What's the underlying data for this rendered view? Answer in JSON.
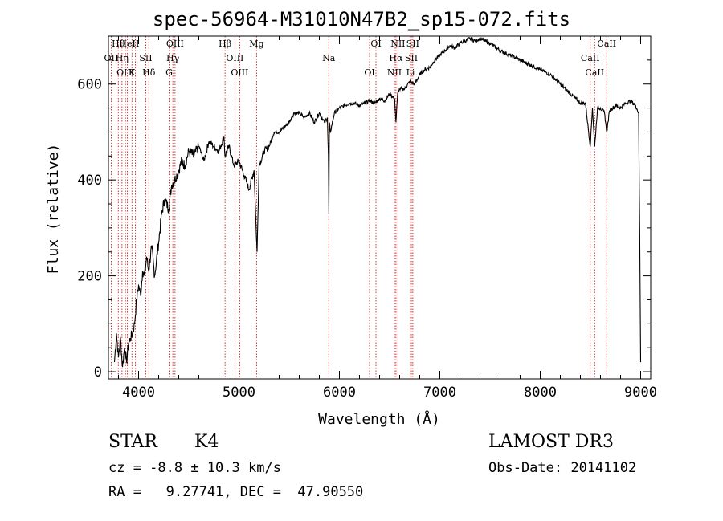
{
  "chart_data": {
    "type": "line",
    "title": "spec-56964-M31010N47B2_sp15-072.fits",
    "xlabel": "Wavelength (Å)",
    "ylabel": "Flux (relative)",
    "xlim": [
      3700,
      9100
    ],
    "ylim": [
      -15,
      700
    ],
    "x_ticks": [
      4000,
      5000,
      6000,
      7000,
      8000,
      9000
    ],
    "y_ticks": [
      0,
      200,
      400,
      600
    ],
    "series": [
      {
        "name": "flux",
        "x": [
          3760,
          3780,
          3800,
          3820,
          3840,
          3860,
          3880,
          3900,
          3920,
          3940,
          3960,
          3980,
          4000,
          4020,
          4040,
          4060,
          4080,
          4100,
          4130,
          4160,
          4200,
          4230,
          4260,
          4300,
          4330,
          4360,
          4400,
          4430,
          4460,
          4500,
          4550,
          4600,
          4650,
          4700,
          4750,
          4800,
          4850,
          4860,
          4900,
          4950,
          5000,
          5050,
          5100,
          5150,
          5170,
          5180,
          5200,
          5250,
          5300,
          5350,
          5400,
          5450,
          5500,
          5550,
          5600,
          5650,
          5700,
          5750,
          5800,
          5850,
          5880,
          5890,
          5895,
          5900,
          5910,
          5950,
          6000,
          6050,
          6100,
          6150,
          6200,
          6250,
          6300,
          6350,
          6400,
          6450,
          6500,
          6550,
          6563,
          6580,
          6600,
          6650,
          6700,
          6750,
          6800,
          6850,
          6900,
          6950,
          7000,
          7050,
          7100,
          7150,
          7200,
          7250,
          7300,
          7350,
          7400,
          7450,
          7500,
          7600,
          7700,
          7800,
          7900,
          8000,
          8100,
          8200,
          8300,
          8400,
          8450,
          8498,
          8520,
          8542,
          8570,
          8600,
          8640,
          8662,
          8690,
          8750,
          8800,
          8850,
          8900,
          8950,
          8980,
          8990,
          9000
        ],
        "values": [
          20,
          80,
          30,
          70,
          10,
          50,
          20,
          60,
          70,
          80,
          100,
          150,
          180,
          160,
          210,
          200,
          240,
          210,
          260,
          200,
          270,
          330,
          360,
          340,
          390,
          400,
          420,
          440,
          430,
          460,
          450,
          470,
          440,
          480,
          470,
          460,
          490,
          450,
          470,
          430,
          440,
          410,
          380,
          420,
          300,
          250,
          430,
          460,
          470,
          500,
          500,
          510,
          520,
          540,
          540,
          530,
          540,
          520,
          540,
          520,
          530,
          450,
          330,
          520,
          500,
          540,
          550,
          555,
          560,
          560,
          555,
          560,
          565,
          560,
          570,
          565,
          580,
          570,
          520,
          580,
          590,
          590,
          605,
          600,
          620,
          630,
          635,
          650,
          660,
          670,
          680,
          675,
          685,
          690,
          695,
          690,
          695,
          690,
          685,
          670,
          660,
          650,
          640,
          630,
          620,
          600,
          580,
          560,
          560,
          470,
          550,
          470,
          550,
          550,
          540,
          500,
          545,
          555,
          550,
          560,
          565,
          555,
          540,
          300,
          20
        ]
      }
    ],
    "line_markers": [
      {
        "name": "Hθ",
        "x": 3798
      },
      {
        "name": "OII",
        "x": 3727
      },
      {
        "name": "OIII",
        "x": 3869
      },
      {
        "name": "HeI",
        "x": 3889
      },
      {
        "name": "Hη",
        "x": 3835
      },
      {
        "name": "K",
        "x": 3934
      },
      {
        "name": "H",
        "x": 3968
      },
      {
        "name": "SII",
        "x": 4072
      },
      {
        "name": "Hδ",
        "x": 4102
      },
      {
        "name": "OIII",
        "x": 4363
      },
      {
        "name": "Hγ",
        "x": 4341
      },
      {
        "name": "G",
        "x": 4304
      },
      {
        "name": "Hβ",
        "x": 4861
      },
      {
        "name": "OIII",
        "x": 4959
      },
      {
        "name": "OIII",
        "x": 5007
      },
      {
        "name": "Mg",
        "x": 5175
      },
      {
        "name": "Na",
        "x": 5894
      },
      {
        "name": "OI",
        "x": 6300
      },
      {
        "name": "OI",
        "x": 6364
      },
      {
        "name": "Hα",
        "x": 6563
      },
      {
        "name": "NII",
        "x": 6548
      },
      {
        "name": "NII",
        "x": 6583
      },
      {
        "name": "SII",
        "x": 6716
      },
      {
        "name": "Li",
        "x": 6708
      },
      {
        "name": "SII",
        "x": 6731
      },
      {
        "name": "CaII",
        "x": 8498
      },
      {
        "name": "CaII",
        "x": 8542
      },
      {
        "name": "CaII",
        "x": 8662
      }
    ],
    "grid": false,
    "legend": "none"
  },
  "info": {
    "object": "STAR",
    "subclass": "K4",
    "survey": "LAMOST DR3",
    "cz": "cz = -8.8 ± 10.3 km/s",
    "obs_date": "Obs-Date: 20141102",
    "coords": "RA =   9.27741, DEC =  47.90550"
  }
}
